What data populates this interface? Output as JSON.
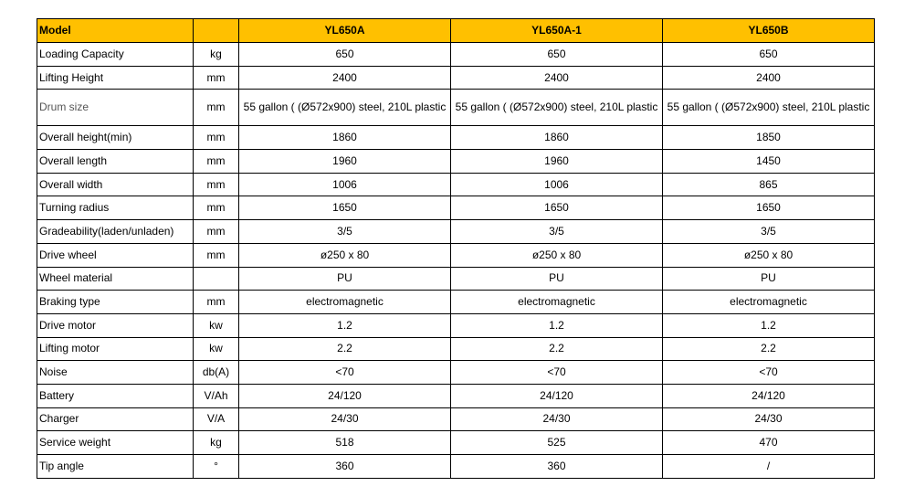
{
  "table": {
    "header": [
      "Model",
      null,
      "YL650A",
      "YL650A-1",
      "YL650B"
    ],
    "rows": [
      [
        "Loading Capacity",
        "kg",
        "650",
        "650",
        "650"
      ],
      [
        "Lifting Height",
        "mm",
        "2400",
        "2400",
        "2400"
      ],
      [
        "Drum size",
        "mm",
        "55 gallon ( (Ø572x900) steel, 210L plastic",
        "55 gallon ( (Ø572x900) steel, 210L plastic",
        "55 gallon ( (Ø572x900) steel, 210L plastic"
      ],
      [
        "Overall height(min)",
        "mm",
        "1860",
        "1860",
        "1850"
      ],
      [
        "Overall length",
        "mm",
        "1960",
        "1960",
        "1450"
      ],
      [
        "Overall width",
        "mm",
        "1006",
        "1006",
        "865"
      ],
      [
        "Turning radius",
        "mm",
        "1650",
        "1650",
        "1650"
      ],
      [
        "Gradeability(laden/unladen)",
        "mm",
        "3/5",
        "3/5",
        "3/5"
      ],
      [
        "Drive wheel",
        "mm",
        "ø250 x 80",
        "ø250 x 80",
        "ø250 x 80"
      ],
      [
        "Wheel material",
        null,
        "PU",
        "PU",
        "PU"
      ],
      [
        "Braking type",
        "mm",
        "electromagnetic",
        "electromagnetic",
        "electromagnetic"
      ],
      [
        "Drive motor",
        "kw",
        "1.2",
        "1.2",
        "1.2"
      ],
      [
        "Lifting motor",
        "kw",
        "2.2",
        "2.2",
        "2.2"
      ],
      [
        "Noise",
        "db(A)",
        "<70",
        "<70",
        "<70"
      ],
      [
        "Battery",
        "V/Ah",
        "24/120",
        "24/120",
        "24/120"
      ],
      [
        "Charger",
        "V/A",
        "24/30",
        "24/30",
        "24/30"
      ],
      [
        "Service weight",
        "kg",
        "518",
        "525",
        "470"
      ],
      [
        "Tip angle",
        "°",
        "360",
        "360",
        "/"
      ]
    ]
  }
}
